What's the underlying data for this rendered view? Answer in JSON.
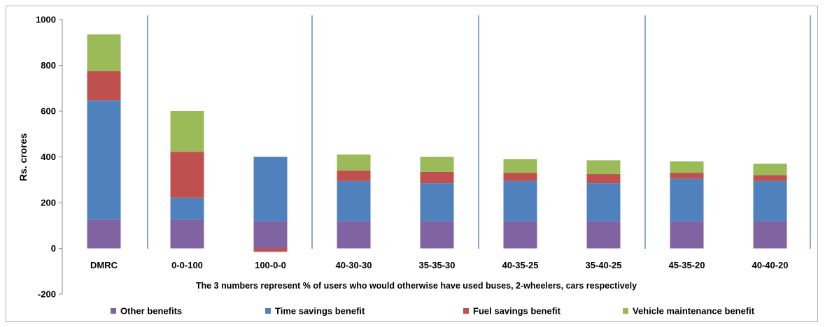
{
  "chart_data": {
    "type": "bar",
    "stacked": true,
    "title": "",
    "ylabel": "Rs. crores",
    "xlabel": "The 3 numbers represent % of users who would otherwise have used buses, 2-wheelers, cars respectively",
    "ylim": [
      -200,
      1000
    ],
    "yticks": [
      "-200",
      "0",
      "200",
      "400",
      "600",
      "800",
      "1000"
    ],
    "categories": [
      "DMRC",
      "0-0-100",
      "100-0-0",
      "40-30-30",
      "35-35-30",
      "40-35-25",
      "35-40-25",
      "45-35-20",
      "40-40-20"
    ],
    "series": [
      {
        "name": "Other benefits",
        "color": "#8064A2",
        "values": [
          125,
          125,
          120,
          120,
          120,
          120,
          120,
          120,
          120
        ]
      },
      {
        "name": "Time savings benefit",
        "color": "#4F81BD",
        "values": [
          523,
          97,
          280,
          175,
          165,
          175,
          165,
          185,
          175
        ]
      },
      {
        "name": "Fuel savings benefit",
        "color": "#C0504D",
        "values": [
          127,
          200,
          -15,
          45,
          50,
          35,
          40,
          25,
          25
        ]
      },
      {
        "name": "Vehicle maintenance benefit",
        "color": "#9BBB59",
        "values": [
          160,
          178,
          0,
          70,
          65,
          60,
          60,
          50,
          50
        ]
      }
    ],
    "grid": false,
    "legend": "bottom",
    "separators": "vertical blue lines between category groups"
  }
}
